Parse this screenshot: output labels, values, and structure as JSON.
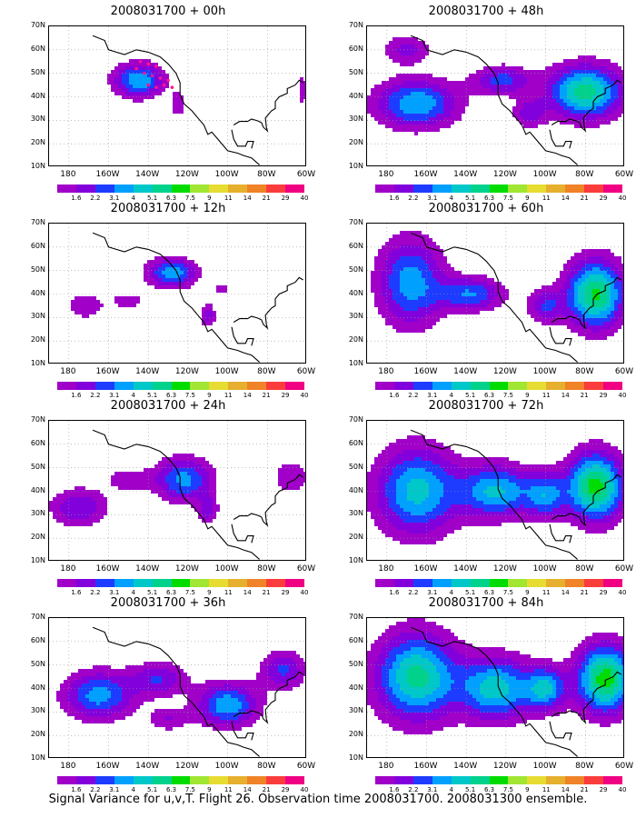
{
  "caption": "Signal Variance for u,v,T. Flight 26. Observation time 2008031700. 2008031300 ensemble.",
  "palette": [
    "#a000c8",
    "#8200dc",
    "#1e3cff",
    "#00a0ff",
    "#00c8c8",
    "#00d28c",
    "#00dc00",
    "#a0e632",
    "#e6dc32",
    "#e6af2d",
    "#f08228",
    "#fa3c3c",
    "#f00082"
  ],
  "colorbar_labels": [
    "1.6",
    "2.2",
    "3.1",
    "4",
    "5.1",
    "6.3",
    "7.5",
    "9",
    "11",
    "14",
    "21",
    "29",
    "40"
  ],
  "lat_labels": [
    "70N",
    "60N",
    "50N",
    "40N",
    "30N",
    "20N",
    "10N"
  ],
  "lon_labels": [
    "180",
    "160W",
    "140W",
    "120W",
    "100W",
    "80W",
    "60W"
  ],
  "chart_data": [
    {
      "type": "heatmap",
      "title": "2008031700 + 00h",
      "lead_hours": 0,
      "blobs": [
        {
          "lon": -145,
          "lat": 47,
          "sx": 12,
          "sy": 7,
          "amp": 5.0
        },
        {
          "lon": -125,
          "lat": 37,
          "sx": 4,
          "sy": 6,
          "amp": 1.8
        },
        {
          "lon": -62,
          "lat": 43,
          "sx": 3,
          "sy": 6,
          "amp": 2.0
        }
      ],
      "observation_marks": [
        {
          "lon": -144,
          "lat": 55
        },
        {
          "lon": -140,
          "lat": 54
        },
        {
          "lon": -136,
          "lat": 53
        },
        {
          "lon": -142,
          "lat": 50
        },
        {
          "lon": -138,
          "lat": 49
        },
        {
          "lon": -134,
          "lat": 48
        },
        {
          "lon": -140,
          "lat": 45
        },
        {
          "lon": -136,
          "lat": 44
        },
        {
          "lon": -132,
          "lat": 45
        },
        {
          "lon": -128,
          "lat": 44
        },
        {
          "lon": -130,
          "lat": 47
        },
        {
          "lon": -146,
          "lat": 52
        }
      ]
    },
    {
      "type": "heatmap",
      "title": "2008031700 + 12h",
      "lead_hours": 12,
      "blobs": [
        {
          "lon": -128,
          "lat": 49,
          "sx": 12,
          "sy": 6,
          "amp": 4.8
        },
        {
          "lon": -110,
          "lat": 31,
          "sx": 4,
          "sy": 5,
          "amp": 2.4
        },
        {
          "lon": -172,
          "lat": 35,
          "sx": 10,
          "sy": 6,
          "amp": 1.8
        },
        {
          "lon": -150,
          "lat": 37,
          "sx": 9,
          "sy": 4,
          "amp": 1.6
        },
        {
          "lon": -103,
          "lat": 42,
          "sx": 3,
          "sy": 3,
          "amp": 1.6
        }
      ]
    },
    {
      "type": "heatmap",
      "title": "2008031700 + 24h",
      "lead_hours": 24,
      "blobs": [
        {
          "lon": -122,
          "lat": 45,
          "sx": 14,
          "sy": 9,
          "amp": 4.4
        },
        {
          "lon": -175,
          "lat": 33,
          "sx": 14,
          "sy": 8,
          "amp": 3.0
        },
        {
          "lon": -110,
          "lat": 32,
          "sx": 5,
          "sy": 6,
          "amp": 2.6
        },
        {
          "lon": -150,
          "lat": 45,
          "sx": 12,
          "sy": 5,
          "amp": 1.7
        },
        {
          "lon": -68,
          "lat": 46,
          "sx": 9,
          "sy": 7,
          "amp": 2.0
        }
      ]
    },
    {
      "type": "heatmap",
      "title": "2008031700 + 36h",
      "lead_hours": 36,
      "blobs": [
        {
          "lon": -165,
          "lat": 37,
          "sx": 17,
          "sy": 10,
          "amp": 4.5
        },
        {
          "lon": -100,
          "lat": 33,
          "sx": 15,
          "sy": 9,
          "amp": 4.8
        },
        {
          "lon": -135,
          "lat": 44,
          "sx": 14,
          "sy": 7,
          "amp": 3.0
        },
        {
          "lon": -72,
          "lat": 48,
          "sx": 11,
          "sy": 8,
          "amp": 3.2
        },
        {
          "lon": -130,
          "lat": 27,
          "sx": 10,
          "sy": 5,
          "amp": 2.0
        }
      ]
    },
    {
      "type": "heatmap",
      "title": "2008031700 + 48h",
      "lead_hours": 48,
      "blobs": [
        {
          "lon": -165,
          "lat": 37,
          "sx": 20,
          "sy": 10,
          "amp": 5.0
        },
        {
          "lon": -80,
          "lat": 42,
          "sx": 18,
          "sy": 11,
          "amp": 6.6
        },
        {
          "lon": -122,
          "lat": 47,
          "sx": 14,
          "sy": 6,
          "amp": 3.5
        },
        {
          "lon": -170,
          "lat": 60,
          "sx": 12,
          "sy": 6,
          "amp": 2.4
        },
        {
          "lon": -108,
          "lat": 33,
          "sx": 8,
          "sy": 6,
          "amp": 2.6
        }
      ]
    },
    {
      "type": "heatmap",
      "title": "2008031700 + 60h",
      "lead_hours": 60,
      "blobs": [
        {
          "lon": -168,
          "lat": 45,
          "sx": 16,
          "sy": 18,
          "amp": 4.6
        },
        {
          "lon": -138,
          "lat": 40,
          "sx": 16,
          "sy": 7,
          "amp": 4.0
        },
        {
          "lon": -75,
          "lat": 40,
          "sx": 14,
          "sy": 14,
          "amp": 7.2
        },
        {
          "lon": -100,
          "lat": 35,
          "sx": 9,
          "sy": 7,
          "amp": 3.0
        }
      ]
    },
    {
      "type": "heatmap",
      "title": "2008031700 + 72h",
      "lead_hours": 72,
      "blobs": [
        {
          "lon": -165,
          "lat": 40,
          "sx": 20,
          "sy": 18,
          "amp": 5.4
        },
        {
          "lon": -125,
          "lat": 40,
          "sx": 18,
          "sy": 11,
          "amp": 5.2
        },
        {
          "lon": -75,
          "lat": 42,
          "sx": 14,
          "sy": 14,
          "amp": 7.5
        },
        {
          "lon": -100,
          "lat": 38,
          "sx": 10,
          "sy": 9,
          "amp": 4.0
        }
      ]
    },
    {
      "type": "heatmap",
      "title": "2008031700 + 84h",
      "lead_hours": 84,
      "blobs": [
        {
          "lon": -165,
          "lat": 45,
          "sx": 20,
          "sy": 18,
          "amp": 6.4
        },
        {
          "lon": -125,
          "lat": 40,
          "sx": 18,
          "sy": 13,
          "amp": 5.6
        },
        {
          "lon": -70,
          "lat": 44,
          "sx": 14,
          "sy": 14,
          "amp": 7.6
        },
        {
          "lon": -100,
          "lat": 40,
          "sx": 10,
          "sy": 9,
          "amp": 4.8
        }
      ]
    }
  ]
}
